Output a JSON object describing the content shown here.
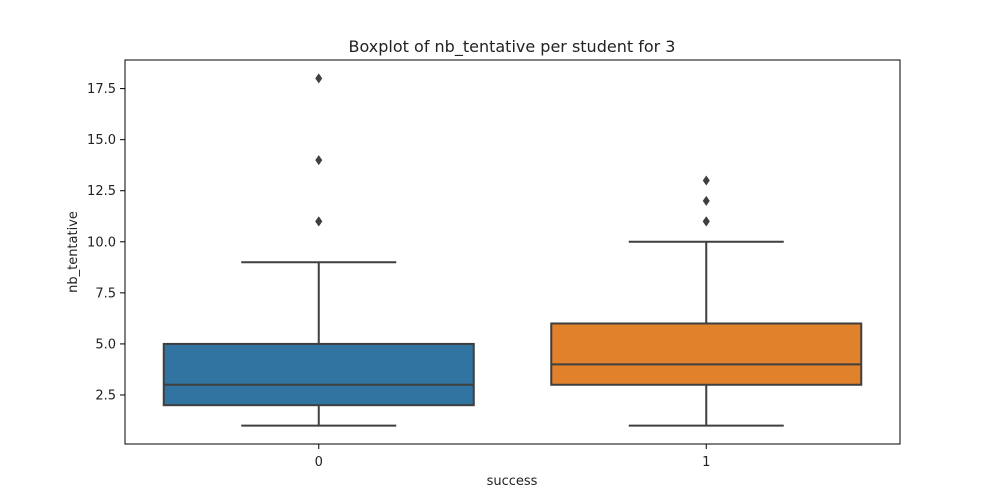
{
  "chart_data": {
    "type": "box",
    "title": "Boxplot of nb_tentative per student for 3",
    "xlabel": "success",
    "ylabel": "nb_tentative",
    "categories": [
      "0",
      "1"
    ],
    "ylim": [
      0.1,
      18.9
    ],
    "yticks": [
      2.5,
      5.0,
      7.5,
      10.0,
      12.5,
      15.0,
      17.5
    ],
    "ytick_labels": [
      "2.5",
      "5.0",
      "7.5",
      "10.0",
      "12.5",
      "15.0",
      "17.5"
    ],
    "grid": false,
    "boxes": [
      {
        "category": "0",
        "color": "#3274a1",
        "whisker_low": 1,
        "q1": 2,
        "median": 3,
        "q3": 5,
        "whisker_high": 9,
        "outliers": [
          11,
          11,
          14,
          18
        ]
      },
      {
        "category": "1",
        "color": "#e1812c",
        "whisker_low": 1,
        "q1": 3,
        "median": 4,
        "q3": 6,
        "whisker_high": 10,
        "outliers": [
          11,
          11,
          12,
          13
        ]
      }
    ]
  }
}
